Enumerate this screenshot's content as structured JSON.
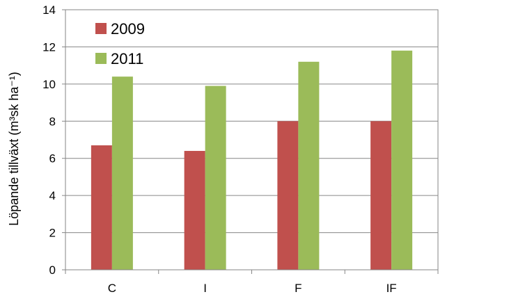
{
  "chart_data": {
    "type": "bar",
    "categories": [
      "C",
      "I",
      "F",
      "IF"
    ],
    "series": [
      {
        "name": "2009",
        "values": [
          6.7,
          6.4,
          8.0,
          8.0
        ],
        "color": "#c0504d"
      },
      {
        "name": "2011",
        "values": [
          10.4,
          9.9,
          11.2,
          11.8
        ],
        "color": "#9bbb59"
      }
    ],
    "ylim": [
      0,
      14
    ],
    "yticks": [
      "0",
      "2",
      "4",
      "6",
      "8",
      "10",
      "12",
      "14"
    ],
    "ytick_values": [
      0,
      2,
      4,
      6,
      8,
      10,
      12,
      14
    ],
    "ylabel": "Löpande tillväxt (m³sk ha⁻¹)",
    "xlabel": "",
    "title": "",
    "grid": true,
    "legend": "top-left"
  }
}
